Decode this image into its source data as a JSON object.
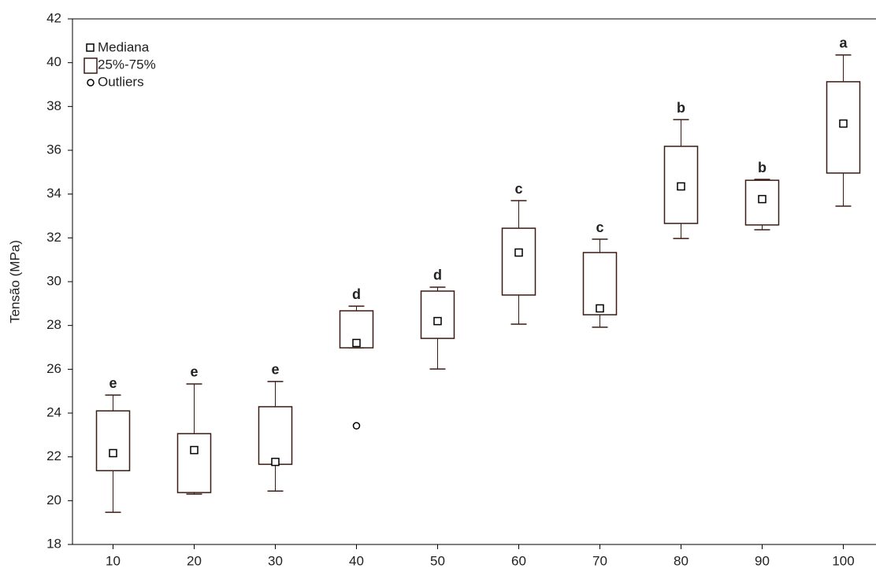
{
  "chart_data": {
    "type": "box",
    "y_label": "Tensão (MPa)",
    "categories": [
      "10",
      "20",
      "30",
      "40",
      "50",
      "60",
      "70",
      "80",
      "90",
      "100"
    ],
    "whisker_high": [
      24.82,
      25.33,
      25.44,
      28.88,
      29.75,
      33.7,
      31.94,
      37.4,
      34.67,
      40.35
    ],
    "q3": [
      24.1,
      23.06,
      24.29,
      28.67,
      29.57,
      32.44,
      31.33,
      36.18,
      34.63,
      39.13
    ],
    "median": [
      22.17,
      22.31,
      21.77,
      27.2,
      28.2,
      31.33,
      28.78,
      34.35,
      33.77,
      37.22
    ],
    "q1": [
      21.37,
      20.37,
      21.66,
      26.98,
      27.41,
      29.39,
      28.49,
      32.66,
      32.59,
      34.96
    ],
    "whisker_low": [
      19.47,
      20.3,
      20.44,
      26.98,
      26.01,
      28.06,
      27.92,
      31.97,
      32.37,
      33.45
    ],
    "outliers": [
      [],
      [],
      [],
      [
        23.42
      ],
      [],
      [],
      [],
      [],
      [],
      []
    ],
    "group_labels": [
      "e",
      "e",
      "e",
      "d",
      "d",
      "c",
      "c",
      "b",
      "b",
      "a"
    ],
    "legend_labels": [
      "Mediana",
      "25%-75%",
      "Outliers"
    ],
    "legend": "upper left",
    "color": "#3b1a12",
    "ylim": [
      18,
      42
    ],
    "yticks": [
      18,
      20,
      22,
      24,
      26,
      28,
      30,
      32,
      34,
      36,
      38,
      40,
      42
    ]
  }
}
